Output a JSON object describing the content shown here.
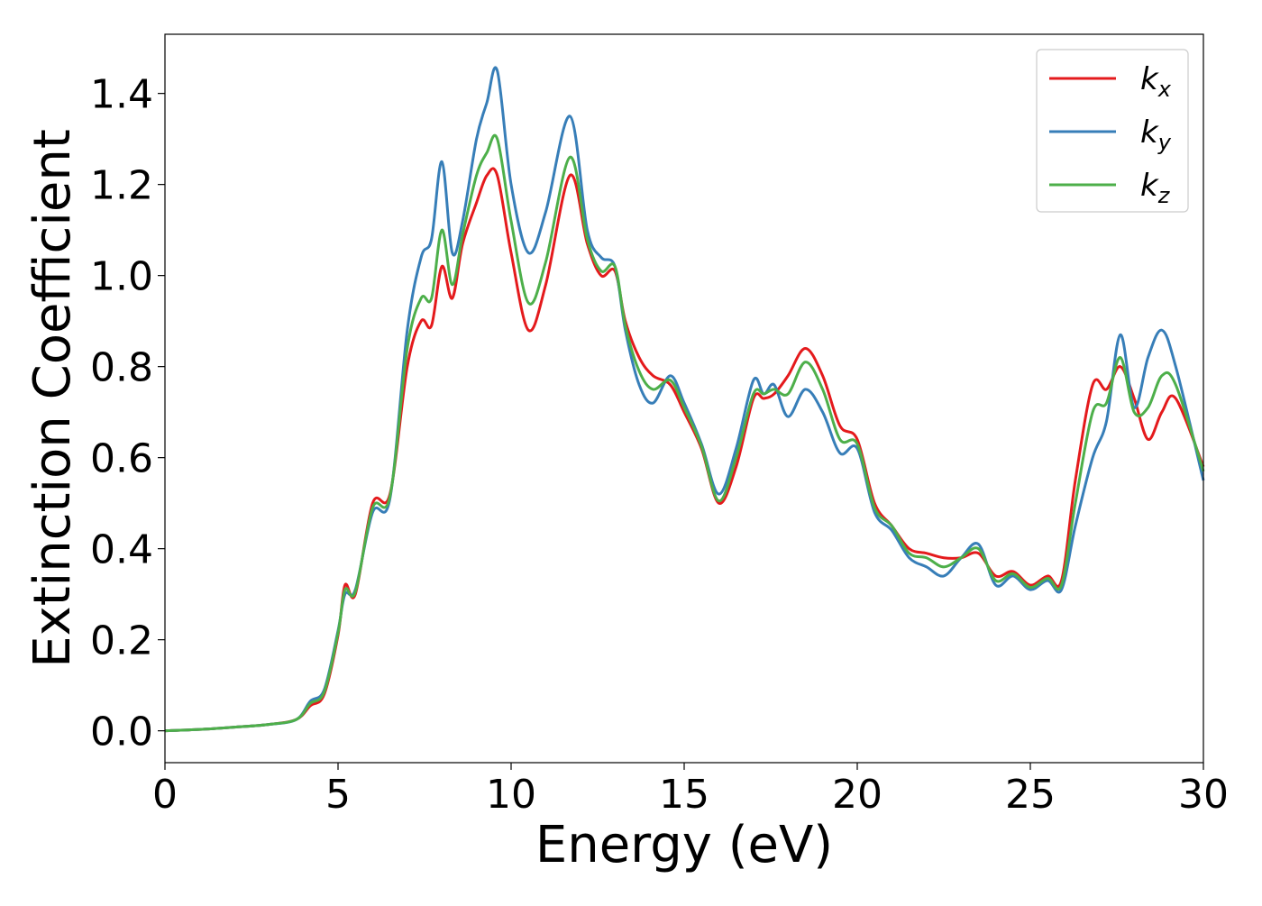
{
  "chart_data": {
    "type": "line",
    "xlabel": "Energy (eV)",
    "ylabel": "Extinction Coefficient",
    "xlim": [
      0,
      30
    ],
    "ylim": [
      -0.07,
      1.53
    ],
    "xticks": [
      "0",
      "5",
      "10",
      "15",
      "20",
      "25",
      "30"
    ],
    "yticks": [
      "0.0",
      "0.2",
      "0.4",
      "0.6",
      "0.8",
      "1.0",
      "1.2",
      "1.4"
    ],
    "legend_position": "top-right",
    "grid": false,
    "x": [
      0,
      1,
      2,
      3,
      3.8,
      4.2,
      4.6,
      5.0,
      5.2,
      5.5,
      6.0,
      6.5,
      7.0,
      7.4,
      7.7,
      8.0,
      8.3,
      8.6,
      9.0,
      9.3,
      9.6,
      10.0,
      10.5,
      11.0,
      11.7,
      12.2,
      12.6,
      13.0,
      13.3,
      13.7,
      14.1,
      14.6,
      15.0,
      15.5,
      16.0,
      16.5,
      17.0,
      17.3,
      17.6,
      18.0,
      18.5,
      19.0,
      19.5,
      20.0,
      20.5,
      21.0,
      21.5,
      22.0,
      22.5,
      23.0,
      23.5,
      24.0,
      24.5,
      25.0,
      25.5,
      25.9,
      26.3,
      26.8,
      27.2,
      27.6,
      28.0,
      28.4,
      28.8,
      29.2,
      30.0
    ],
    "series": [
      {
        "name": "k",
        "subscript": "x",
        "color": "#e41a1c",
        "values": [
          0,
          0.003,
          0.008,
          0.014,
          0.025,
          0.055,
          0.08,
          0.21,
          0.32,
          0.3,
          0.5,
          0.52,
          0.8,
          0.9,
          0.89,
          1.02,
          0.95,
          1.07,
          1.16,
          1.22,
          1.22,
          1.05,
          0.88,
          0.98,
          1.22,
          1.07,
          1.0,
          1.01,
          0.9,
          0.82,
          0.78,
          0.76,
          0.7,
          0.62,
          0.5,
          0.58,
          0.73,
          0.73,
          0.74,
          0.78,
          0.84,
          0.78,
          0.67,
          0.64,
          0.5,
          0.45,
          0.4,
          0.39,
          0.38,
          0.38,
          0.39,
          0.34,
          0.35,
          0.32,
          0.34,
          0.33,
          0.55,
          0.76,
          0.75,
          0.8,
          0.73,
          0.64,
          0.7,
          0.73,
          0.58
        ]
      },
      {
        "name": "k",
        "subscript": "y",
        "color": "#377eb8",
        "values": [
          0,
          0.003,
          0.008,
          0.014,
          0.025,
          0.065,
          0.09,
          0.22,
          0.3,
          0.31,
          0.48,
          0.51,
          0.88,
          1.04,
          1.08,
          1.25,
          1.05,
          1.12,
          1.3,
          1.38,
          1.45,
          1.2,
          1.05,
          1.14,
          1.35,
          1.1,
          1.04,
          1.02,
          0.88,
          0.76,
          0.72,
          0.78,
          0.72,
          0.63,
          0.52,
          0.62,
          0.77,
          0.74,
          0.76,
          0.69,
          0.75,
          0.7,
          0.61,
          0.62,
          0.48,
          0.44,
          0.38,
          0.36,
          0.34,
          0.38,
          0.41,
          0.32,
          0.34,
          0.31,
          0.33,
          0.31,
          0.45,
          0.6,
          0.68,
          0.87,
          0.71,
          0.82,
          0.88,
          0.8,
          0.55
        ]
      },
      {
        "name": "k",
        "subscript": "z",
        "color": "#4daf4a",
        "values": [
          0,
          0.003,
          0.008,
          0.014,
          0.025,
          0.06,
          0.085,
          0.215,
          0.31,
          0.305,
          0.49,
          0.515,
          0.84,
          0.95,
          0.95,
          1.1,
          0.98,
          1.09,
          1.22,
          1.27,
          1.3,
          1.12,
          0.94,
          1.03,
          1.26,
          1.08,
          1.01,
          1.02,
          0.89,
          0.79,
          0.75,
          0.77,
          0.71,
          0.625,
          0.505,
          0.6,
          0.74,
          0.74,
          0.75,
          0.74,
          0.81,
          0.75,
          0.64,
          0.63,
          0.49,
          0.45,
          0.39,
          0.38,
          0.36,
          0.38,
          0.4,
          0.33,
          0.345,
          0.315,
          0.335,
          0.32,
          0.5,
          0.7,
          0.72,
          0.82,
          0.7,
          0.71,
          0.78,
          0.76,
          0.57
        ]
      }
    ]
  }
}
